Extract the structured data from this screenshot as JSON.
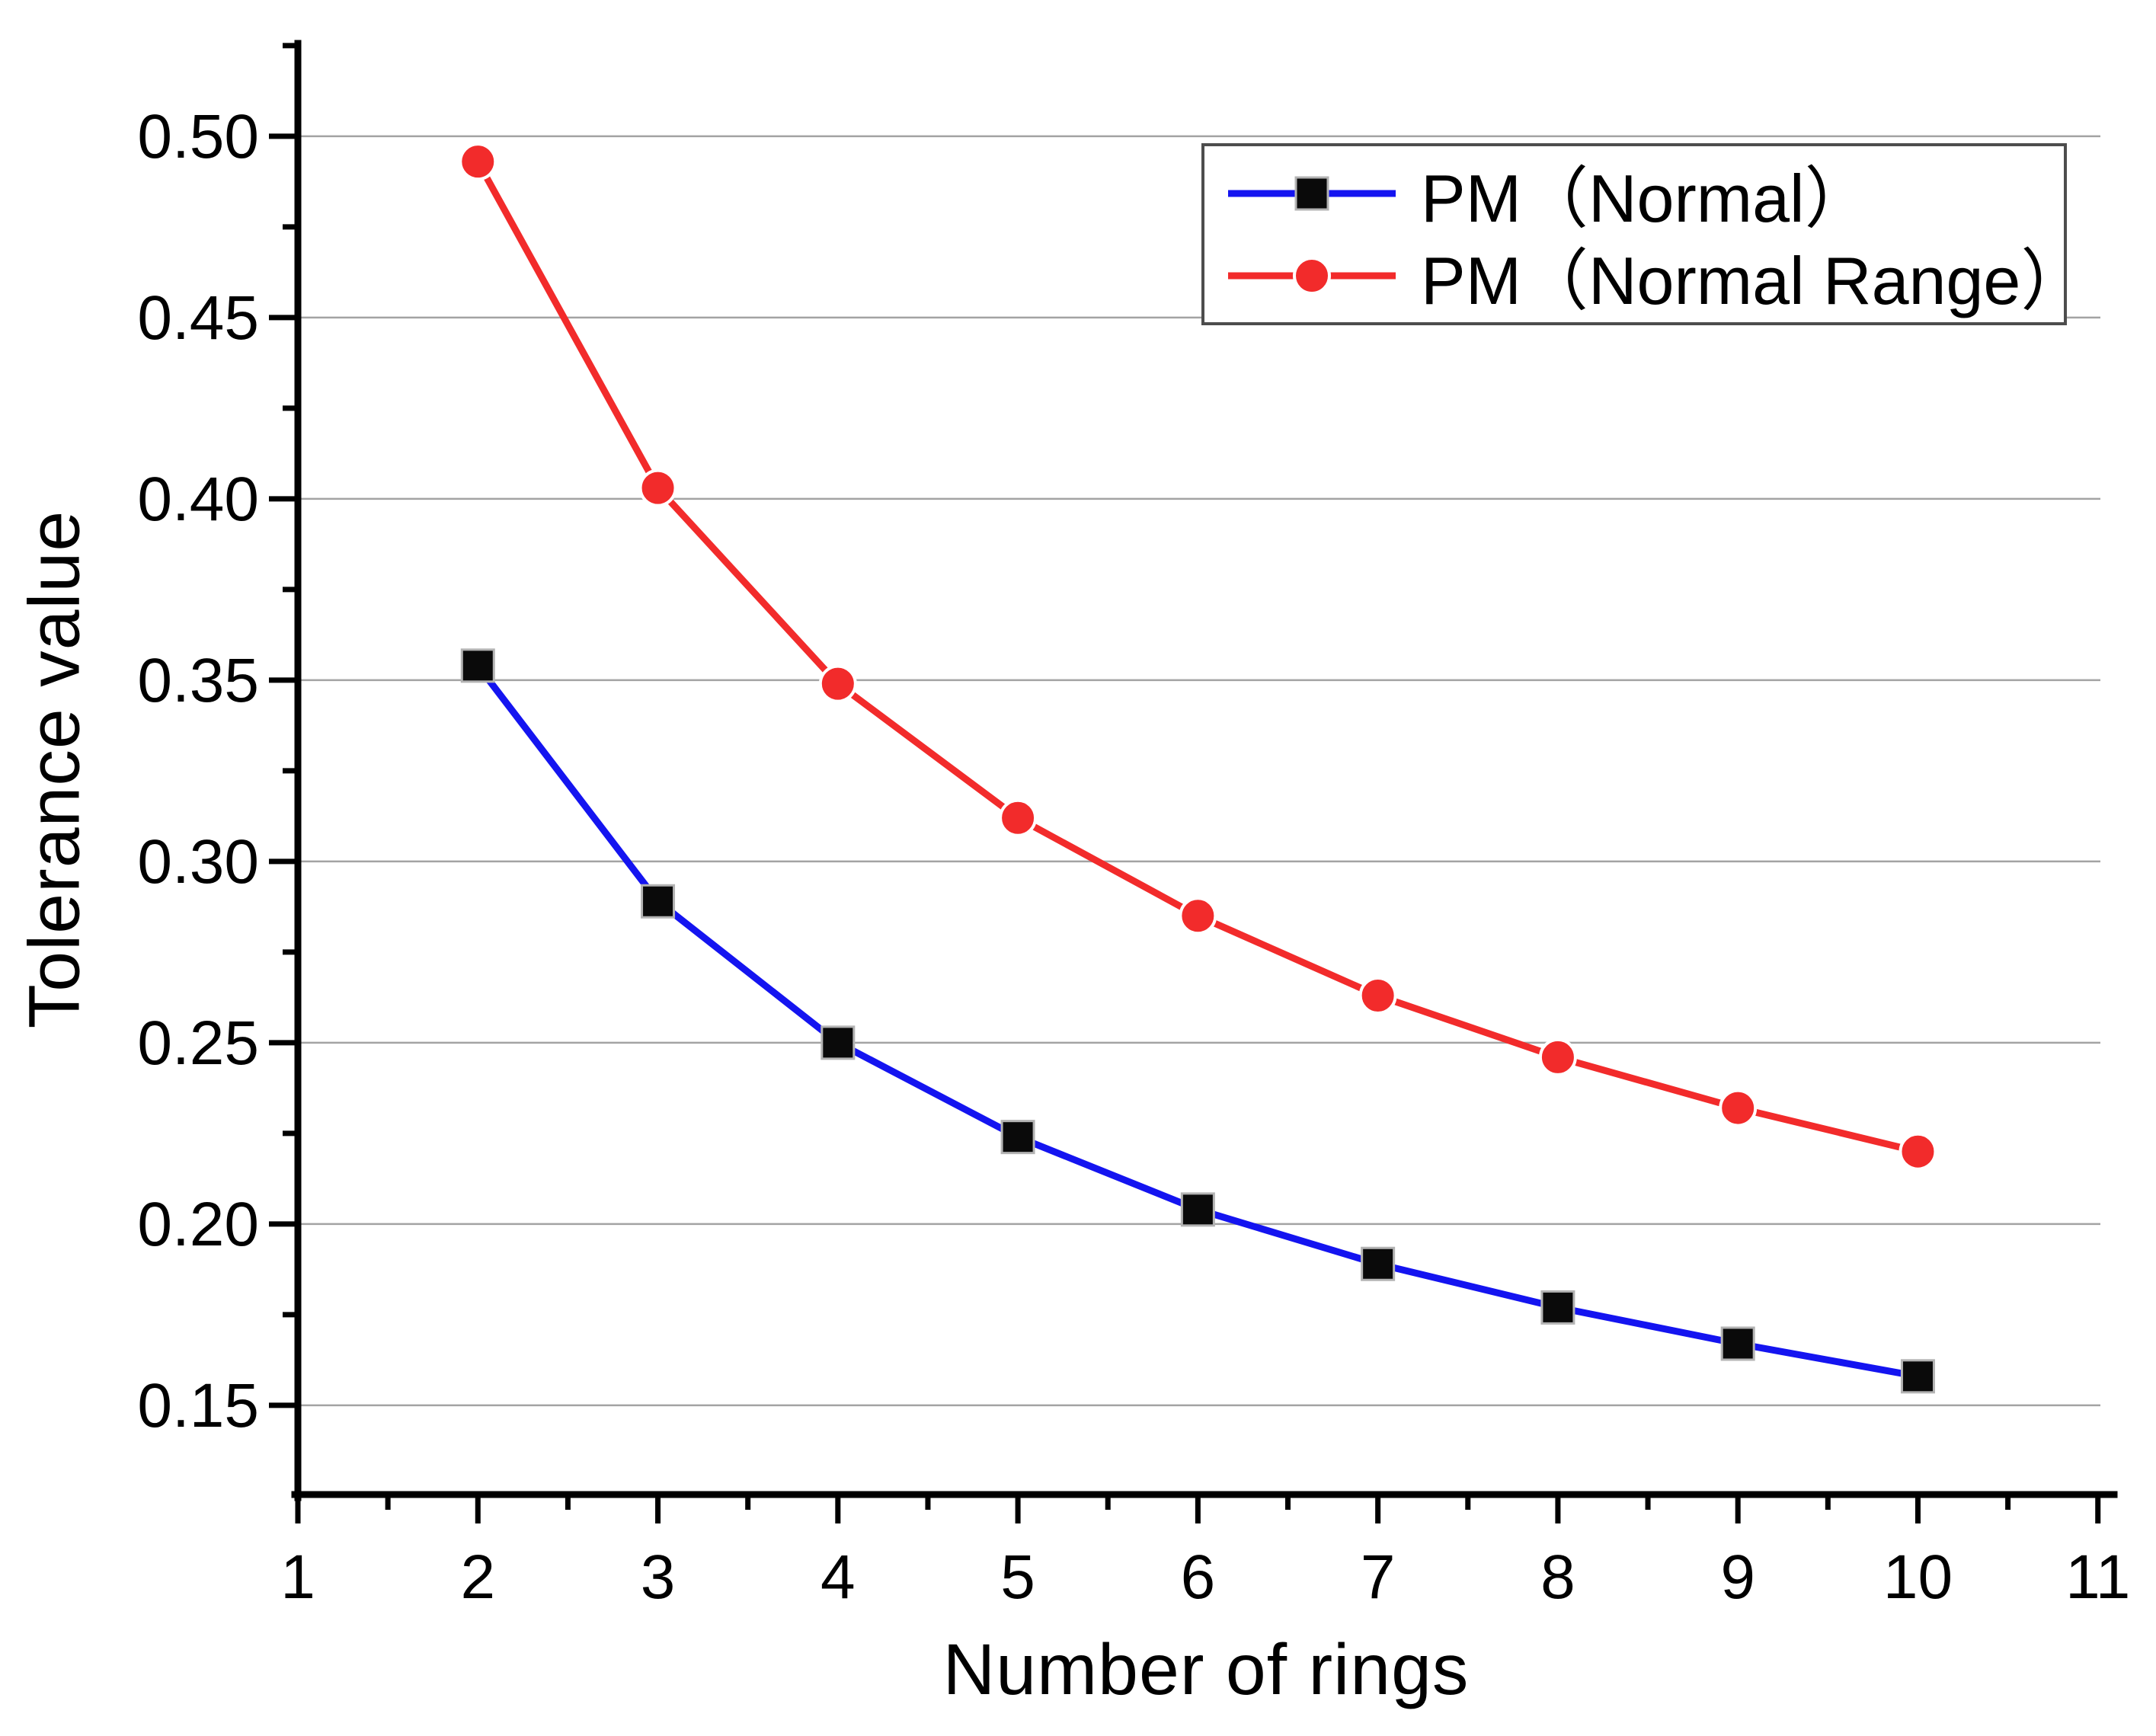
{
  "chart_data": {
    "type": "line",
    "title": "",
    "xlabel": "Number of rings",
    "ylabel": "Tolerance value",
    "x": [
      2,
      3,
      4,
      5,
      6,
      7,
      8,
      9,
      10
    ],
    "series": [
      {
        "name": "PM（Normal）",
        "values": [
          0.354,
          0.289,
          0.25,
          0.224,
          0.204,
          0.189,
          0.177,
          0.167,
          0.158
        ],
        "line_color": "#1414f0",
        "marker": "square",
        "marker_color": "#0a0a0a"
      },
      {
        "name": "PM（Normal Range）",
        "values": [
          0.493,
          0.403,
          0.349,
          0.312,
          0.285,
          0.263,
          0.246,
          0.232,
          0.22
        ],
        "line_color": "#f22b2b",
        "marker": "circle",
        "marker_color": "#f22b2b"
      }
    ],
    "xlim": [
      1,
      11.09
    ],
    "ylim": [
      0.1254,
      0.5256
    ],
    "xticks": [
      1,
      2,
      3,
      4,
      5,
      6,
      7,
      8,
      9,
      10,
      11
    ],
    "xtick_labels": [
      "1",
      "2",
      "3",
      "4",
      "5",
      "6",
      "7",
      "8",
      "9",
      "10",
      "11"
    ],
    "x_minor_ticks": [
      1.5,
      2.5,
      3.5,
      4.5,
      5.5,
      6.5,
      7.5,
      8.5,
      9.5,
      10.5
    ],
    "yticks": [
      0.15,
      0.2,
      0.25,
      0.3,
      0.35,
      0.4,
      0.45,
      0.5
    ],
    "ytick_labels": [
      "0.15",
      "0.20",
      "0.25",
      "0.30",
      "0.35",
      "0.40",
      "0.45",
      "0.50"
    ],
    "y_minor_ticks": [
      0.175,
      0.225,
      0.275,
      0.325,
      0.375,
      0.425,
      0.475,
      0.525
    ],
    "grid": "horizontal",
    "grid_color": "#a3a3a3",
    "axis_color": "#000000",
    "legend_position": "top-right",
    "legend_border_color": "#4d4d4d"
  }
}
